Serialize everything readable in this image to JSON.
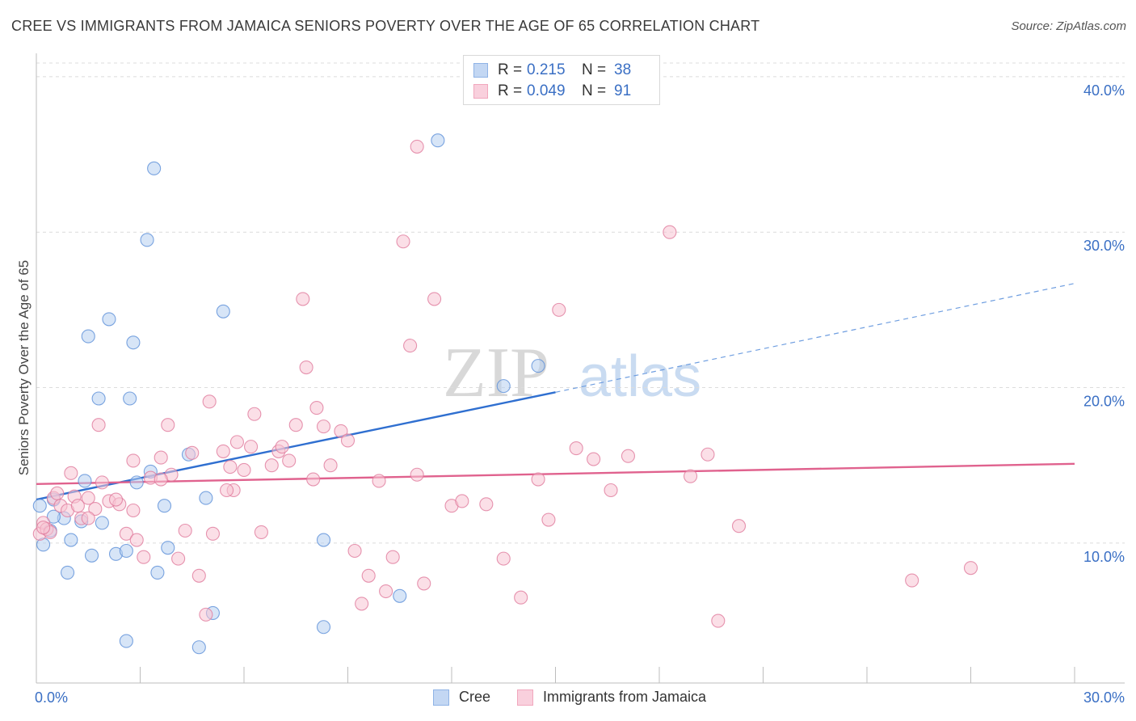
{
  "title": "CREE VS IMMIGRANTS FROM JAMAICA SENIORS POVERTY OVER THE AGE OF 65 CORRELATION CHART",
  "source": "Source: ZipAtlas.com",
  "watermark": {
    "zip": "ZIP",
    "atlas": "atlas"
  },
  "legend_top": [
    {
      "r_label": "R =",
      "r_value": "0.215",
      "n_label": "N =",
      "n_value": "38",
      "color": "#8fb3e6"
    },
    {
      "r_label": "R =",
      "r_value": "0.049",
      "n_label": "N =",
      "n_value": "91",
      "color": "#f1a7bd"
    }
  ],
  "legend_bottom": [
    {
      "label": "Cree",
      "color": "#8fb3e6"
    },
    {
      "label": "Immigrants from Jamaica",
      "color": "#f1a7bd"
    }
  ],
  "chart_data": {
    "type": "scatter",
    "title": "CREE VS IMMIGRANTS FROM JAMAICA SENIORS POVERTY OVER THE AGE OF 65 CORRELATION CHART",
    "xlabel": "",
    "ylabel": "Seniors Poverty Over the Age of 65",
    "xlim": [
      0,
      30
    ],
    "ylim": [
      1,
      41.5
    ],
    "x_tick_labels": [
      "0.0%",
      "30.0%"
    ],
    "y_ticks": [
      10,
      20,
      30,
      40
    ],
    "y_tick_labels": [
      "10.0%",
      "20.0%",
      "30.0%",
      "40.0%"
    ],
    "grid": true,
    "series": [
      {
        "name": "Cree",
        "color": "#5b8fd8",
        "fill": "#b7cff0",
        "trend": {
          "x0": 0,
          "y0": 12.8,
          "x1": 15,
          "y1": 19.7,
          "dash_to_x": 30,
          "dash_to_y": 26.7
        },
        "points": [
          [
            0.1,
            12.4
          ],
          [
            0.4,
            10.8
          ],
          [
            0.5,
            12.8
          ],
          [
            0.2,
            9.9
          ],
          [
            0.8,
            11.6
          ],
          [
            1.0,
            10.2
          ],
          [
            1.3,
            11.4
          ],
          [
            0.9,
            8.1
          ],
          [
            1.6,
            9.2
          ],
          [
            1.9,
            11.3
          ],
          [
            2.3,
            9.3
          ],
          [
            2.6,
            9.5
          ],
          [
            1.4,
            14.0
          ],
          [
            2.9,
            13.9
          ],
          [
            3.3,
            14.6
          ],
          [
            3.7,
            12.4
          ],
          [
            3.8,
            9.7
          ],
          [
            3.5,
            8.1
          ],
          [
            4.4,
            15.7
          ],
          [
            4.9,
            12.9
          ],
          [
            5.1,
            5.5
          ],
          [
            4.7,
            3.3
          ],
          [
            2.6,
            3.7
          ],
          [
            8.3,
            10.2
          ],
          [
            8.3,
            4.6
          ],
          [
            10.5,
            6.6
          ],
          [
            11.6,
            35.9
          ],
          [
            3.4,
            34.1
          ],
          [
            3.2,
            29.5
          ],
          [
            5.4,
            24.9
          ],
          [
            2.1,
            24.4
          ],
          [
            1.5,
            23.3
          ],
          [
            2.8,
            22.9
          ],
          [
            1.8,
            19.3
          ],
          [
            2.7,
            19.3
          ],
          [
            13.5,
            20.1
          ],
          [
            14.5,
            21.4
          ],
          [
            0.5,
            11.7
          ]
        ]
      },
      {
        "name": "Immigrants from Jamaica",
        "color": "#e07a9c",
        "fill": "#f7c4d4",
        "trend": {
          "x0": 0,
          "y0": 13.8,
          "x1": 30,
          "y1": 15.1
        },
        "points": [
          [
            0.1,
            10.6
          ],
          [
            0.2,
            11.3
          ],
          [
            0.3,
            10.9
          ],
          [
            0.5,
            12.9
          ],
          [
            0.6,
            13.2
          ],
          [
            0.7,
            12.4
          ],
          [
            0.9,
            12.1
          ],
          [
            1.0,
            14.5
          ],
          [
            1.1,
            13.0
          ],
          [
            1.3,
            11.6
          ],
          [
            1.5,
            12.9
          ],
          [
            1.7,
            12.2
          ],
          [
            1.9,
            13.9
          ],
          [
            2.1,
            12.7
          ],
          [
            2.4,
            12.5
          ],
          [
            2.6,
            10.6
          ],
          [
            2.8,
            15.3
          ],
          [
            2.9,
            10.2
          ],
          [
            3.1,
            9.1
          ],
          [
            3.3,
            14.2
          ],
          [
            3.6,
            15.5
          ],
          [
            3.8,
            17.6
          ],
          [
            3.9,
            14.4
          ],
          [
            4.1,
            9.0
          ],
          [
            4.3,
            10.8
          ],
          [
            4.5,
            15.8
          ],
          [
            4.7,
            7.9
          ],
          [
            5.0,
            19.1
          ],
          [
            5.1,
            10.6
          ],
          [
            5.4,
            15.9
          ],
          [
            5.6,
            14.9
          ],
          [
            5.7,
            13.4
          ],
          [
            5.8,
            16.5
          ],
          [
            6.0,
            14.7
          ],
          [
            6.2,
            16.2
          ],
          [
            6.3,
            18.3
          ],
          [
            6.5,
            10.7
          ],
          [
            6.8,
            15.0
          ],
          [
            7.0,
            15.9
          ],
          [
            7.1,
            16.2
          ],
          [
            7.3,
            15.3
          ],
          [
            7.5,
            17.6
          ],
          [
            7.7,
            25.7
          ],
          [
            7.8,
            21.3
          ],
          [
            8.0,
            14.1
          ],
          [
            8.1,
            18.7
          ],
          [
            8.3,
            17.5
          ],
          [
            8.5,
            15.0
          ],
          [
            8.8,
            17.2
          ],
          [
            9.0,
            16.6
          ],
          [
            9.2,
            9.5
          ],
          [
            9.4,
            6.1
          ],
          [
            9.6,
            7.9
          ],
          [
            9.9,
            14.0
          ],
          [
            10.1,
            6.9
          ],
          [
            10.3,
            9.1
          ],
          [
            10.6,
            29.4
          ],
          [
            10.8,
            22.7
          ],
          [
            11.0,
            14.4
          ],
          [
            11.2,
            7.4
          ],
          [
            11.5,
            25.7
          ],
          [
            11.0,
            35.5
          ],
          [
            12.0,
            12.4
          ],
          [
            12.3,
            12.7
          ],
          [
            13.0,
            12.5
          ],
          [
            13.5,
            9.0
          ],
          [
            14.0,
            6.5
          ],
          [
            14.5,
            14.1
          ],
          [
            14.8,
            11.5
          ],
          [
            15.1,
            25.0
          ],
          [
            15.6,
            16.1
          ],
          [
            16.1,
            15.4
          ],
          [
            16.6,
            13.4
          ],
          [
            17.1,
            15.6
          ],
          [
            18.3,
            30.0
          ],
          [
            18.9,
            14.3
          ],
          [
            19.4,
            15.7
          ],
          [
            19.7,
            5.0
          ],
          [
            20.3,
            11.1
          ],
          [
            25.3,
            7.6
          ],
          [
            27.0,
            8.4
          ],
          [
            1.8,
            17.6
          ],
          [
            2.3,
            12.8
          ],
          [
            4.9,
            5.4
          ],
          [
            3.6,
            14.1
          ],
          [
            0.4,
            10.7
          ],
          [
            0.2,
            11.0
          ],
          [
            1.2,
            12.4
          ],
          [
            1.5,
            11.6
          ],
          [
            2.8,
            12.1
          ],
          [
            5.5,
            13.4
          ]
        ]
      }
    ]
  }
}
